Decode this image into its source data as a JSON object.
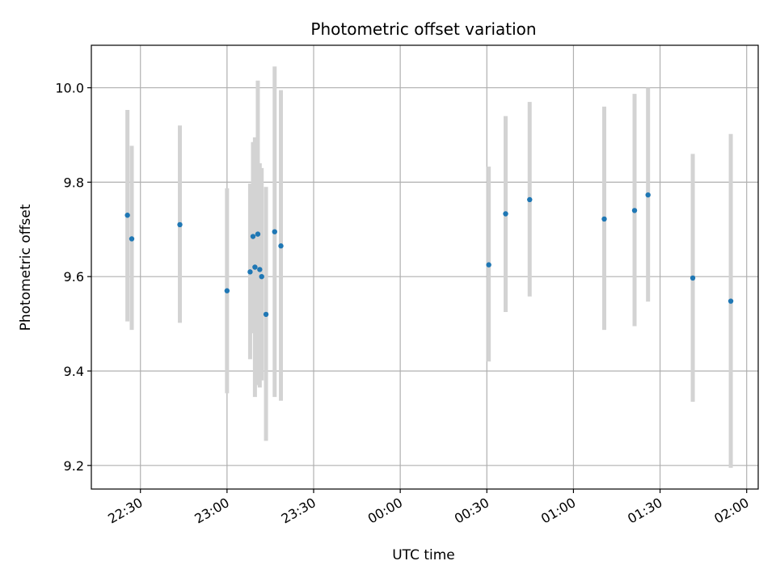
{
  "chart_data": {
    "type": "scatter",
    "title": "Photometric offset variation",
    "xlabel": "UTC time",
    "ylabel": "Photometric offset",
    "grid": true,
    "xlim": [
      "22:13",
      "02:04"
    ],
    "ylim": [
      9.15,
      10.09
    ],
    "x_tick_labels": [
      "22:30",
      "23:00",
      "23:30",
      "00:00",
      "00:30",
      "01:00",
      "01:30",
      "02:00"
    ],
    "y_tick_labels": [
      "9.2",
      "9.4",
      "9.6",
      "9.8",
      "10.0"
    ],
    "y_ticks": [
      9.2,
      9.4,
      9.6,
      9.8,
      10.0
    ],
    "colors": {
      "point": "#1f77b4",
      "errorbar": "#d3d3d3",
      "grid": "#b0b0b0"
    },
    "series": [
      {
        "x": [
          "22:25:30",
          "22:27:00",
          "22:43:40",
          "23:00:00",
          "23:08:00",
          "23:09:00",
          "23:09:40",
          "23:10:40",
          "23:11:20",
          "23:12:00",
          "23:13:30",
          "23:16:30",
          "23:18:40",
          "00:30:40",
          "00:36:30",
          "00:44:50",
          "01:10:40",
          "01:21:10",
          "01:25:50",
          "01:41:20",
          "01:54:30"
        ],
        "y": [
          9.73,
          9.68,
          9.71,
          9.57,
          9.61,
          9.685,
          9.62,
          9.69,
          9.615,
          9.6,
          9.52,
          9.695,
          9.665,
          9.625,
          9.733,
          9.763,
          9.722,
          9.74,
          9.773,
          9.597,
          9.548
        ],
        "err_low": [
          9.505,
          9.487,
          9.502,
          9.353,
          9.425,
          9.48,
          9.345,
          9.37,
          9.365,
          9.38,
          9.252,
          9.345,
          9.337,
          9.42,
          9.525,
          9.558,
          9.487,
          9.495,
          9.547,
          9.335,
          9.195
        ],
        "err_high": [
          9.953,
          9.877,
          9.92,
          9.787,
          9.797,
          9.885,
          9.895,
          10.015,
          9.84,
          9.83,
          9.79,
          10.045,
          9.995,
          9.833,
          9.94,
          9.97,
          9.96,
          9.987,
          10.0,
          9.86,
          9.902
        ]
      }
    ]
  }
}
